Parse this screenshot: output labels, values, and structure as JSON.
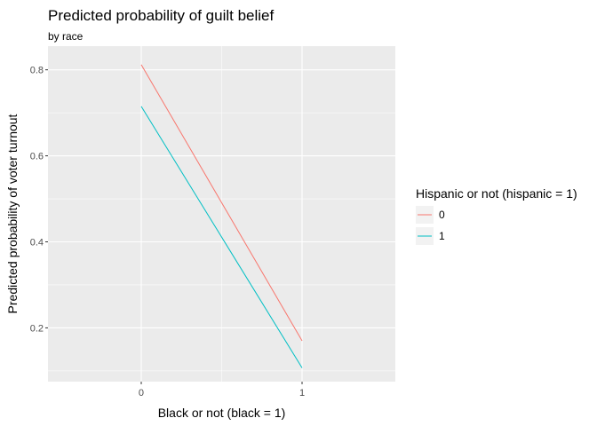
{
  "chart_data": {
    "type": "line",
    "title": "Predicted probability of guilt belief",
    "subtitle": "by race",
    "xlabel": "Black or not (black = 1)",
    "ylabel": "Predicted probability of voter turnout",
    "x": [
      0,
      1
    ],
    "xticks": [
      "0",
      "1"
    ],
    "xlim": [
      -0.58,
      1.58
    ],
    "yticks": [
      "0.2",
      "0.4",
      "0.6",
      "0.8"
    ],
    "ylim": [
      0.075,
      0.855
    ],
    "grid": true,
    "legend": {
      "title": "Hispanic or not (hispanic = 1)",
      "placement": "right"
    },
    "series": [
      {
        "name": "0",
        "color": "#F8766D",
        "values": [
          0.812,
          0.17
        ]
      },
      {
        "name": "1",
        "color": "#00BFC4",
        "values": [
          0.715,
          0.107
        ]
      }
    ],
    "panel_color": "#EBEBEB",
    "grid_color": "#FFFFFF"
  }
}
